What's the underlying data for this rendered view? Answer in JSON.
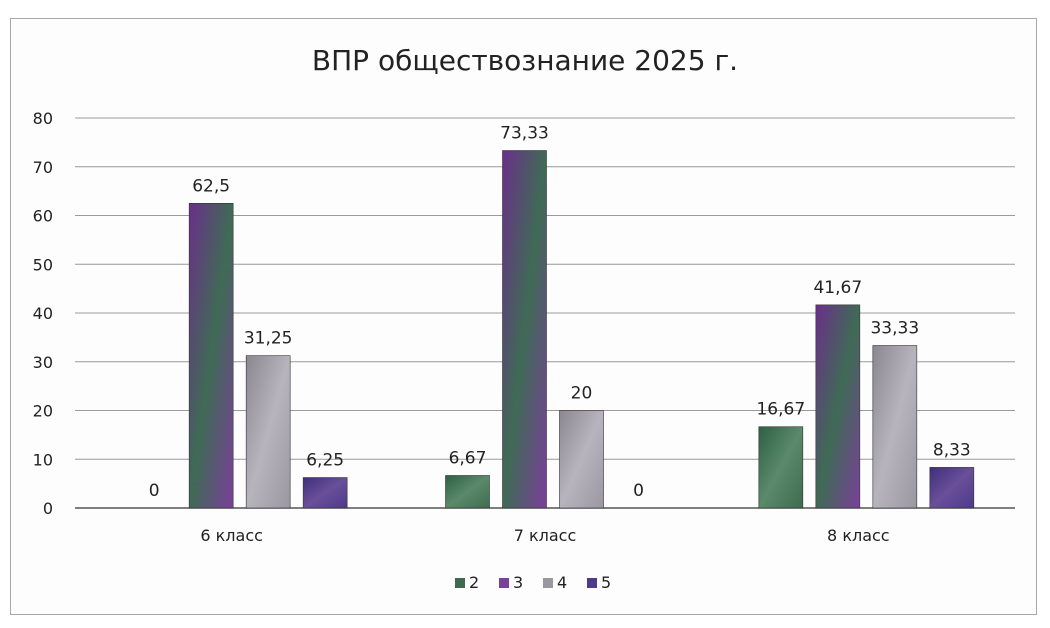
{
  "chart_data": {
    "type": "bar",
    "title": "ВПР обществознание 2025 г.",
    "xlabel": "",
    "ylabel": "",
    "categories": [
      "6 класс",
      "7 класс",
      "8 класс"
    ],
    "series": [
      {
        "name": "2",
        "values": [
          0,
          6.67,
          16.67
        ],
        "labels": [
          "0",
          "6,67",
          "16,67"
        ],
        "color": "#3e6b4f"
      },
      {
        "name": "3",
        "values": [
          62.5,
          73.33,
          41.67
        ],
        "labels": [
          "62,5",
          "73,33",
          "41,67"
        ],
        "color": "#7a3f9a"
      },
      {
        "name": "4",
        "values": [
          31.25,
          20,
          33.33
        ],
        "labels": [
          "31,25",
          "20",
          "33,33"
        ],
        "color": "#9a97a0"
      },
      {
        "name": "5",
        "values": [
          6.25,
          0,
          8.33
        ],
        "labels": [
          "6,25",
          "0",
          "8,33"
        ],
        "color": "#4d3a8a"
      }
    ],
    "yticks": [
      "0",
      "10",
      "20",
      "30",
      "40",
      "50",
      "60",
      "70",
      "80"
    ],
    "ylim": [
      0,
      80
    ],
    "grid": true,
    "legend_position": "bottom"
  }
}
